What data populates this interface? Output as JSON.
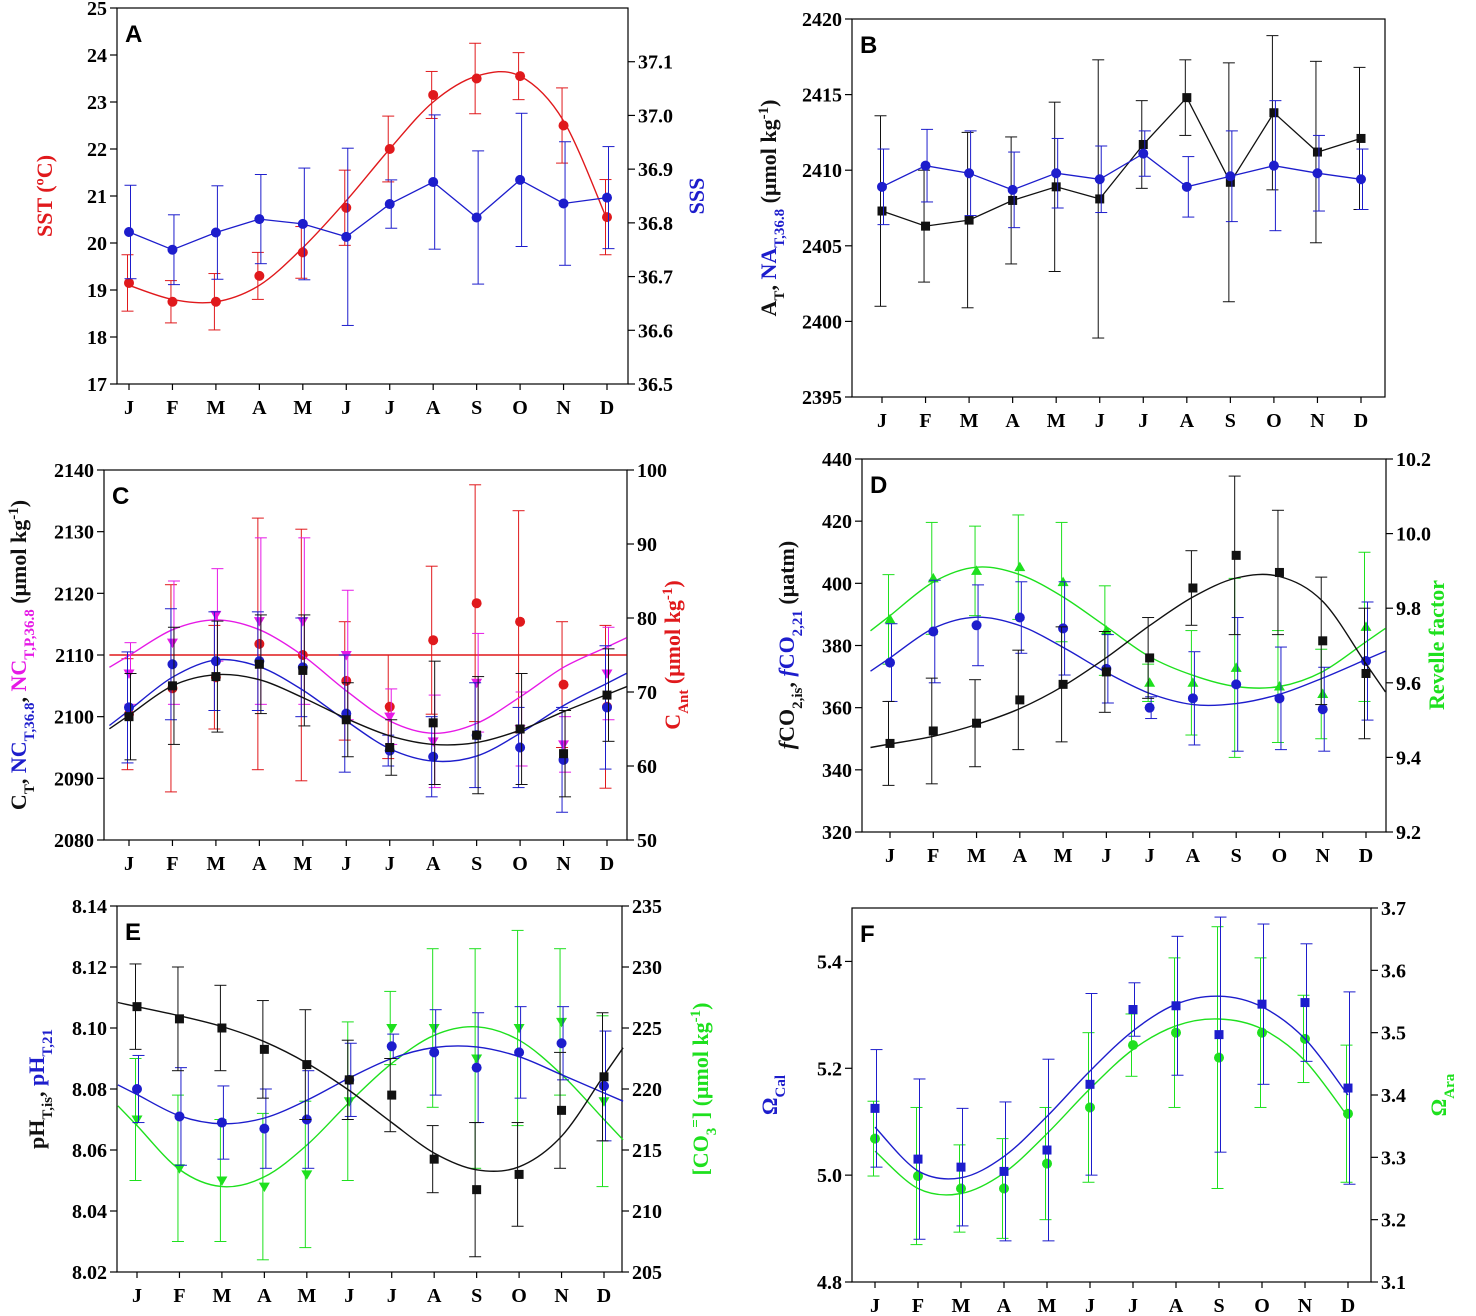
{
  "months": [
    "J",
    "F",
    "M",
    "A",
    "M",
    "J",
    "J",
    "A",
    "S",
    "O",
    "N",
    "D"
  ],
  "colors": {
    "red": "#e0191c",
    "blue": "#1d1dcc",
    "black": "#111111",
    "green": "#1ee01e",
    "magenta": "#e619e6",
    "gray_bar": "#444444"
  },
  "chart_data": [
    {
      "panel": "A",
      "type": "line",
      "ylim_left": [
        17,
        25
      ],
      "yticks_left": [
        17,
        18,
        19,
        20,
        21,
        22,
        23,
        24,
        25
      ],
      "ylabel_left": "SST (ºC)",
      "ylim_right": [
        36.5,
        37.2
      ],
      "yticks_right": [
        36.5,
        36.6,
        36.7,
        36.8,
        36.9,
        37.0,
        37.1
      ],
      "ylabel_right": "SSS",
      "series": [
        {
          "name": "SST",
          "axis": "left",
          "marker": "circle",
          "color": "red",
          "connect": "smooth",
          "values": [
            19.15,
            18.75,
            18.75,
            19.3,
            19.8,
            20.75,
            22.0,
            23.15,
            23.5,
            23.55,
            22.5,
            20.55
          ],
          "errors": [
            0.6,
            0.45,
            0.6,
            0.5,
            0.55,
            0.8,
            0.7,
            0.5,
            0.75,
            0.5,
            0.8,
            0.8
          ],
          "fit": [
            19.1,
            18.8,
            18.75,
            19.1,
            19.9,
            20.9,
            22.0,
            23.0,
            23.55,
            23.55,
            22.6,
            20.5
          ]
        },
        {
          "name": "SSS",
          "axis": "right",
          "marker": "circle",
          "color": "blue",
          "connect": "straight",
          "values": [
            36.783,
            36.75,
            36.782,
            36.807,
            36.798,
            36.774,
            36.835,
            36.876,
            36.81,
            36.88,
            36.836,
            36.847
          ],
          "errors": [
            0.087,
            0.065,
            0.087,
            0.083,
            0.104,
            0.165,
            0.045,
            0.125,
            0.124,
            0.124,
            0.115,
            0.095
          ]
        }
      ]
    },
    {
      "panel": "B",
      "type": "line",
      "ylim_left": [
        2395,
        2420
      ],
      "yticks_left": [
        2395,
        2400,
        2405,
        2410,
        2415,
        2420
      ],
      "ylabel_left": "AT, NAT,36.8 (μmol kg-1)",
      "series": [
        {
          "name": "AT",
          "axis": "left",
          "marker": "square",
          "color": "black",
          "connect": "straight",
          "values": [
            2407.3,
            2406.3,
            2406.7,
            2408.0,
            2408.9,
            2408.1,
            2411.7,
            2414.8,
            2409.2,
            2413.8,
            2411.2,
            2412.1
          ],
          "errors": [
            6.3,
            3.7,
            5.8,
            4.2,
            5.6,
            9.2,
            2.9,
            2.5,
            7.9,
            5.1,
            6.0,
            4.7
          ]
        },
        {
          "name": "NAT,36.8",
          "axis": "left",
          "marker": "circle",
          "color": "blue",
          "connect": "straight",
          "values": [
            2408.9,
            2410.3,
            2409.8,
            2408.7,
            2409.8,
            2409.4,
            2411.1,
            2408.9,
            2409.6,
            2410.3,
            2409.8,
            2409.4
          ],
          "errors": [
            2.5,
            2.4,
            2.8,
            2.5,
            2.3,
            2.2,
            1.5,
            2.0,
            3.0,
            4.3,
            2.5,
            2.0
          ]
        }
      ]
    },
    {
      "panel": "C",
      "type": "line",
      "ylim_left": [
        2080,
        2140
      ],
      "yticks_left": [
        2080,
        2090,
        2100,
        2110,
        2120,
        2130,
        2140
      ],
      "ylabel_left": "CT, NCT,36.8, NCT,P,36.8 (μmol kg-1)",
      "ylim_right": [
        50,
        100
      ],
      "yticks_right": [
        50,
        60,
        70,
        80,
        90,
        100
      ],
      "ylabel_right": "CAnt (μmol kg-1)",
      "series": [
        {
          "name": "CAnt",
          "axis": "right",
          "marker": "circle",
          "color": "red",
          "connect": "fit",
          "values": [
            67,
            70.5,
            72,
            76.5,
            75,
            71.5,
            68,
            77,
            82,
            79.5,
            71,
            68
          ],
          "errors": [
            7.5,
            14,
            7,
            17,
            17,
            8,
            7,
            10,
            16,
            15,
            8.5,
            11
          ],
          "fit": [
            75,
            75,
            75,
            75,
            75,
            75,
            75,
            75,
            75,
            75,
            75,
            75
          ]
        },
        {
          "name": "NCT,P,36.8",
          "axis": "left",
          "marker": "triangle-down",
          "color": "magenta",
          "connect": "fit",
          "values": [
            2107,
            2112,
            2116.5,
            2115.5,
            2115.5,
            2110,
            2100,
            2096,
            2105.5,
            2098,
            2095.5,
            2107
          ],
          "errors": [
            5,
            10,
            7.5,
            13.5,
            13.5,
            10.5,
            4.5,
            7.5,
            8,
            6,
            4.5,
            7.5
          ],
          "fit": [
            2109.9,
            2114.1,
            2115.7,
            2114.1,
            2109.9,
            2104.2,
            2099.3,
            2097.3,
            2098.9,
            2103.2,
            2108.0,
            2111.3
          ]
        },
        {
          "name": "NCT,36.8",
          "axis": "left",
          "marker": "circle",
          "color": "blue",
          "connect": "fit",
          "values": [
            2101.5,
            2108.5,
            2109,
            2109,
            2108,
            2100.5,
            2094.5,
            2093.5,
            2097,
            2095,
            2093,
            2101.5
          ],
          "errors": [
            9,
            9,
            8,
            8,
            8,
            9.5,
            2.5,
            6.5,
            8.5,
            6.5,
            8.5,
            10
          ],
          "fit": [
            2101.0,
            2106.4,
            2109.2,
            2108.1,
            2104.3,
            2099.3,
            2094.8,
            2092.8,
            2093.6,
            2097.3,
            2101.8,
            2105.4
          ]
        },
        {
          "name": "CT",
          "axis": "left",
          "marker": "square",
          "color": "black",
          "connect": "fit",
          "values": [
            2100,
            2105,
            2106.5,
            2108.5,
            2107.5,
            2099.5,
            2095,
            2099,
            2097,
            2098,
            2094,
            2103.5
          ],
          "errors": [
            7,
            9.5,
            9,
            8,
            9,
            6,
            4.5,
            10,
            9.5,
            9,
            7,
            7.5
          ],
          "fit": [
            2100.2,
            2105.0,
            2106.8,
            2106.0,
            2103.1,
            2099.7,
            2096.9,
            2095.5,
            2095.8,
            2097.8,
            2100.8,
            2103.6
          ]
        }
      ]
    },
    {
      "panel": "D",
      "type": "line",
      "ylim_left": [
        320,
        440
      ],
      "yticks_left": [
        320,
        340,
        360,
        380,
        400,
        420,
        440
      ],
      "ylabel_left": "fCO2,is, fCO2,21 (μatm)",
      "ylim_right": [
        9.2,
        10.2
      ],
      "yticks_right": [
        9.2,
        9.4,
        9.6,
        9.8,
        10.0,
        10.2
      ],
      "ylabel_right": "Revelle factor",
      "series": [
        {
          "name": "Revelle factor",
          "axis": "right",
          "marker": "triangle-up",
          "color": "green",
          "connect": "fit",
          "values": [
            9.77,
            9.88,
            9.9,
            9.91,
            9.87,
            9.74,
            9.6,
            9.6,
            9.64,
            9.59,
            9.57,
            9.75
          ],
          "errors": [
            0.12,
            0.15,
            0.12,
            0.14,
            0.16,
            0.12,
            0.05,
            0.14,
            0.24,
            0.15,
            0.12,
            0.2
          ],
          "fit": [
            9.78,
            9.87,
            9.91,
            9.89,
            9.83,
            9.75,
            9.67,
            9.62,
            9.59,
            9.59,
            9.63,
            9.71
          ]
        },
        {
          "name": "fCO2,21",
          "axis": "left",
          "marker": "circle",
          "color": "blue",
          "connect": "fit",
          "values": [
            374.5,
            384.5,
            386.5,
            389,
            385.5,
            372.5,
            360,
            363,
            367.5,
            363,
            359.5,
            375
          ],
          "errors": [
            12.5,
            16.5,
            13,
            11.5,
            15,
            11,
            3.5,
            15,
            21.5,
            16.5,
            13.5,
            19
          ],
          "fit": [
            376.0,
            385.5,
            389.1,
            386.4,
            379.4,
            371.3,
            364.6,
            361.0,
            361.3,
            364.3,
            369.5,
            375.5
          ]
        },
        {
          "name": "fCO2,is",
          "axis": "left",
          "marker": "square",
          "color": "black",
          "connect": "fit",
          "values": [
            348.5,
            352.5,
            355,
            362.5,
            367.5,
            371.5,
            376,
            398.5,
            409,
            403.5,
            381.5,
            371
          ],
          "errors": [
            13.5,
            17,
            14,
            16,
            18.5,
            13,
            13,
            12,
            25.5,
            20,
            20.5,
            21
          ],
          "fit": [
            348.3,
            350.8,
            354.6,
            359.7,
            366.9,
            376.1,
            386.4,
            395.6,
            401.7,
            402.2,
            394.2,
            374.1
          ]
        }
      ]
    },
    {
      "panel": "E",
      "type": "line",
      "ylim_left": [
        8.02,
        8.14
      ],
      "yticks_left": [
        8.02,
        8.04,
        8.06,
        8.08,
        8.1,
        8.12,
        8.14
      ],
      "ylabel_left": "pHT,is, pHT,21",
      "ylim_right": [
        205,
        235
      ],
      "yticks_right": [
        205,
        210,
        215,
        220,
        225,
        230,
        235
      ],
      "ylabel_right": "[CO3=] (μmol kg-1)",
      "series": [
        {
          "name": "[CO3=]",
          "axis": "right",
          "marker": "triangle-down",
          "color": "green",
          "connect": "fit",
          "values": [
            217.5,
            213.5,
            212.5,
            212,
            213,
            219,
            225,
            225,
            222.5,
            225,
            225.5,
            219
          ],
          "errors": [
            5,
            6,
            5,
            6,
            6,
            6.5,
            3,
            6.5,
            9,
            8,
            6,
            7
          ],
          "fit": [
            217.0,
            213.4,
            212.0,
            212.8,
            215.4,
            218.9,
            222.1,
            224.4,
            225.1,
            224.0,
            221.2,
            217.5
          ]
        },
        {
          "name": "pHT,21",
          "axis": "left",
          "marker": "circle",
          "color": "blue",
          "connect": "fit",
          "values": [
            8.08,
            8.071,
            8.069,
            8.067,
            8.07,
            8.083,
            8.094,
            8.092,
            8.087,
            8.092,
            8.095,
            8.081
          ],
          "errors": [
            0.011,
            0.016,
            0.012,
            0.013,
            0.016,
            0.012,
            0.004,
            0.014,
            0.018,
            0.015,
            0.012,
            0.018
          ],
          "fit": [
            8.0782,
            8.0712,
            8.0686,
            8.0705,
            8.0763,
            8.0836,
            8.09,
            8.0936,
            8.0938,
            8.0906,
            8.0847,
            8.0787
          ]
        },
        {
          "name": "pHT,is",
          "axis": "left",
          "marker": "square",
          "color": "black",
          "connect": "fit",
          "values": [
            8.107,
            8.103,
            8.1,
            8.093,
            8.088,
            8.083,
            8.078,
            8.057,
            8.047,
            8.052,
            8.073,
            8.084
          ],
          "errors": [
            0.014,
            0.017,
            0.014,
            0.016,
            0.018,
            0.013,
            0.012,
            0.011,
            0.022,
            0.017,
            0.019,
            0.021
          ],
          "fit": [
            8.107,
            8.104,
            8.1005,
            8.0955,
            8.0885,
            8.0795,
            8.069,
            8.059,
            8.0535,
            8.0545,
            8.0645,
            8.0845
          ]
        }
      ]
    },
    {
      "panel": "F",
      "type": "line",
      "ylim_left": [
        4.8,
        5.5
      ],
      "yticks_left": [
        4.8,
        5.0,
        5.2,
        5.4
      ],
      "ylabel_left": "ΩCal",
      "ylim_right": [
        3.1,
        3.7
      ],
      "yticks_right": [
        3.1,
        3.2,
        3.3,
        3.4,
        3.5,
        3.6,
        3.7
      ],
      "ylabel_right": "ΩAra",
      "series": [
        {
          "name": "ΩAra",
          "axis": "right",
          "marker": "circle",
          "color": "green",
          "connect": "fit",
          "values": [
            3.33,
            3.27,
            3.25,
            3.25,
            3.29,
            3.38,
            3.48,
            3.5,
            3.46,
            3.5,
            3.49,
            3.37
          ],
          "errors": [
            0.06,
            0.11,
            0.07,
            0.08,
            0.09,
            0.12,
            0.05,
            0.12,
            0.21,
            0.12,
            0.07,
            0.11
          ],
          "fit": [
            3.31,
            3.25,
            3.242,
            3.275,
            3.338,
            3.41,
            3.473,
            3.511,
            3.522,
            3.506,
            3.455,
            3.365
          ]
        },
        {
          "name": "ΩCal",
          "axis": "left",
          "marker": "square",
          "color": "blue",
          "connect": "fit",
          "values": [
            5.125,
            5.03,
            5.015,
            5.007,
            5.047,
            5.17,
            5.31,
            5.317,
            5.263,
            5.32,
            5.323,
            5.163
          ],
          "errors": [
            0.11,
            0.15,
            0.11,
            0.13,
            0.17,
            0.17,
            0.05,
            0.13,
            0.22,
            0.15,
            0.11,
            0.18
          ],
          "fit": [
            5.09,
            5.008,
            4.995,
            5.035,
            5.11,
            5.195,
            5.27,
            5.32,
            5.335,
            5.315,
            5.255,
            5.15
          ]
        }
      ]
    }
  ]
}
